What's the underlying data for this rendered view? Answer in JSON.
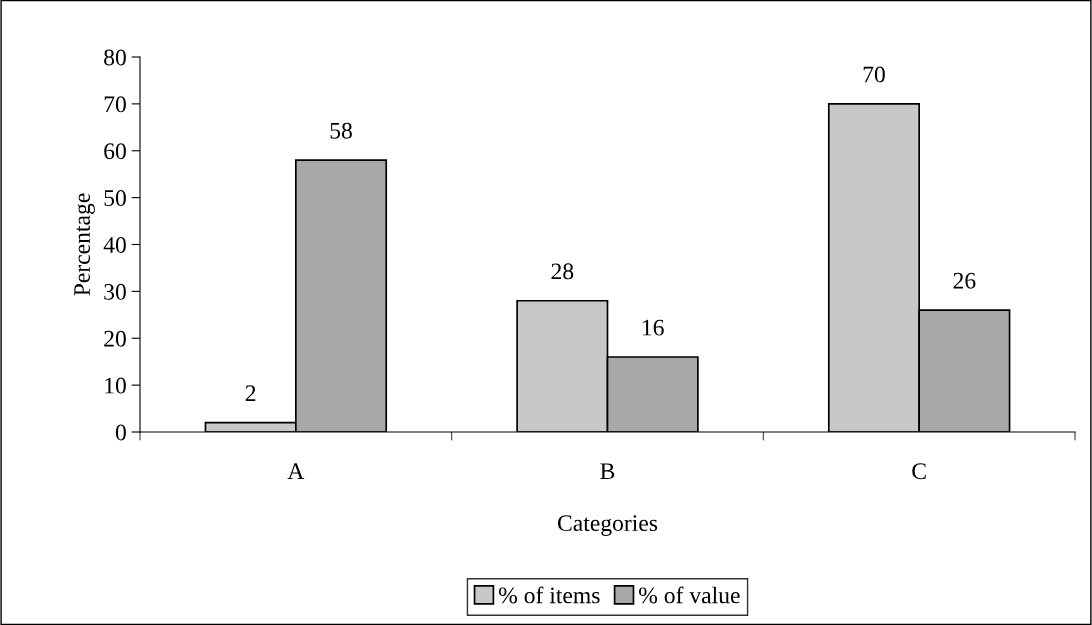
{
  "chart_data": {
    "type": "bar",
    "xlabel": "Categories",
    "ylabel": "Percentage",
    "categories": [
      "A",
      "B",
      "C"
    ],
    "series": [
      {
        "name": "% of items",
        "color": "#c8c8c8",
        "values": [
          2,
          28,
          70
        ]
      },
      {
        "name": "% of value",
        "color": "#a8a8a8",
        "values": [
          58,
          16,
          26
        ]
      }
    ],
    "ylim": [
      0,
      80
    ],
    "yticks": [
      0,
      10,
      20,
      30,
      40,
      50,
      60,
      70,
      80
    ],
    "data_labels": true,
    "grid": false,
    "legend": "bottom"
  }
}
